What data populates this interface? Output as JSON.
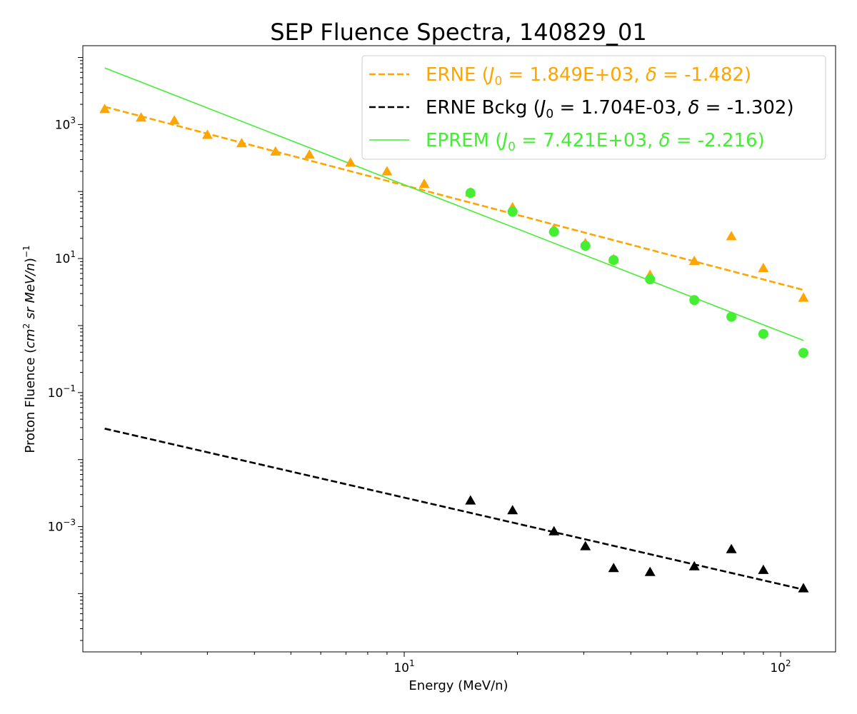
{
  "chart_data": {
    "type": "scatter",
    "title": "SEP Fluence Spectra, 140829_01",
    "xlabel": "Energy (MeV/n)",
    "ylabel_parts": [
      "Proton Fluence (",
      "cm",
      "2",
      " sr MeV/n",
      ")",
      "−1"
    ],
    "x_scale": "log",
    "y_scale": "log",
    "xlim": [
      1.4,
      140
    ],
    "ylim": [
      1.35e-05,
      15000
    ],
    "x_ticks": [
      {
        "value": 10,
        "base": "10",
        "exp": "1"
      },
      {
        "value": 100,
        "base": "10",
        "exp": "2"
      }
    ],
    "y_ticks": [
      {
        "value": 0.001,
        "base": "10",
        "exp": "−3"
      },
      {
        "value": 0.1,
        "base": "10",
        "exp": "−1"
      },
      {
        "value": 10,
        "base": "10",
        "exp": "1"
      },
      {
        "value": 1000,
        "base": "10",
        "exp": "3"
      }
    ],
    "grid": false,
    "legend_position": "top-right",
    "series": [
      {
        "name": "ERNE",
        "legend": {
          "prefix": "ERNE (",
          "j0": "1.849E+03",
          "delta": "-1.482"
        },
        "color": "#ffa500",
        "marker": "triangle",
        "x": [
          1.6,
          2.0,
          2.45,
          3.0,
          3.7,
          4.55,
          5.6,
          7.2,
          9.0,
          11.3,
          15.0,
          19.4,
          25.0,
          30.3,
          36.0,
          45.0,
          59.0,
          74.0,
          90.0,
          115.0
        ],
        "y": [
          1700,
          1270,
          1150,
          700,
          525,
          395,
          355,
          270,
          200,
          130,
          97,
          58,
          28,
          17,
          9.8,
          5.7,
          9.2,
          21.5,
          7.2,
          2.6
        ],
        "fit": {
          "style": "dashed",
          "x": [
            1.6,
            115.0
          ],
          "y": [
            1840,
            3.4
          ]
        }
      },
      {
        "name": "ERNE Bckg",
        "legend": {
          "prefix": "ERNE Bckg (",
          "j0": "1.704E-03",
          "delta": "-1.302"
        },
        "color": "#000000",
        "marker": "triangle",
        "x": [
          15.0,
          19.4,
          25.0,
          30.3,
          36.0,
          45.0,
          59.0,
          74.0,
          90.0,
          115.0
        ],
        "y": [
          0.00245,
          0.00175,
          0.00085,
          0.00051,
          0.00024,
          0.00021,
          0.000255,
          0.00046,
          0.000225,
          0.00012
        ],
        "fit": {
          "style": "dashed",
          "x": [
            1.6,
            115.0
          ],
          "y": [
            0.029,
            0.000115
          ]
        }
      },
      {
        "name": "EPREM",
        "legend": {
          "prefix": "EPREM (",
          "j0": "7.421E+03",
          "delta": "-2.216"
        },
        "color": "#44ee33",
        "marker": "circle",
        "x": [
          15.0,
          19.4,
          25.0,
          30.3,
          36.0,
          45.0,
          59.0,
          74.0,
          90.0,
          115.0
        ],
        "y": [
          95,
          50,
          25,
          15.5,
          9.5,
          4.9,
          2.4,
          1.35,
          0.75,
          0.39
        ],
        "fit": {
          "style": "solid",
          "x": [
            1.6,
            115.0
          ],
          "y": [
            7000,
            0.6
          ]
        }
      }
    ]
  }
}
